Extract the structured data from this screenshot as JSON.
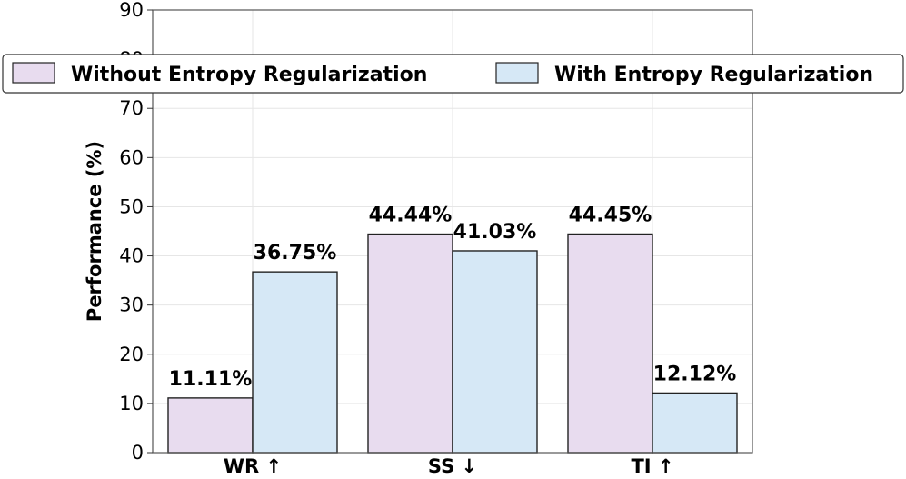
{
  "chart_data": {
    "type": "bar",
    "categories": [
      "WR ↑",
      "SS ↓",
      "TI ↑"
    ],
    "series": [
      {
        "name": "Without Entropy Regularization",
        "values": [
          11.11,
          44.44,
          44.45
        ],
        "labels": [
          "11.11%",
          "44.44%",
          "44.45%"
        ],
        "color": "#e8dcef"
      },
      {
        "name": "With Entropy Regularization",
        "values": [
          36.75,
          41.03,
          12.12
        ],
        "labels": [
          "36.75%",
          "41.03%",
          "12.12%"
        ],
        "color": "#d6e8f6"
      }
    ],
    "xlabel": "",
    "ylabel": "Performance (%)",
    "ylim": [
      0,
      90
    ],
    "yticks": [
      0,
      10,
      20,
      30,
      40,
      50,
      60,
      70,
      80,
      90
    ],
    "grid": true,
    "legend_position": "top"
  }
}
